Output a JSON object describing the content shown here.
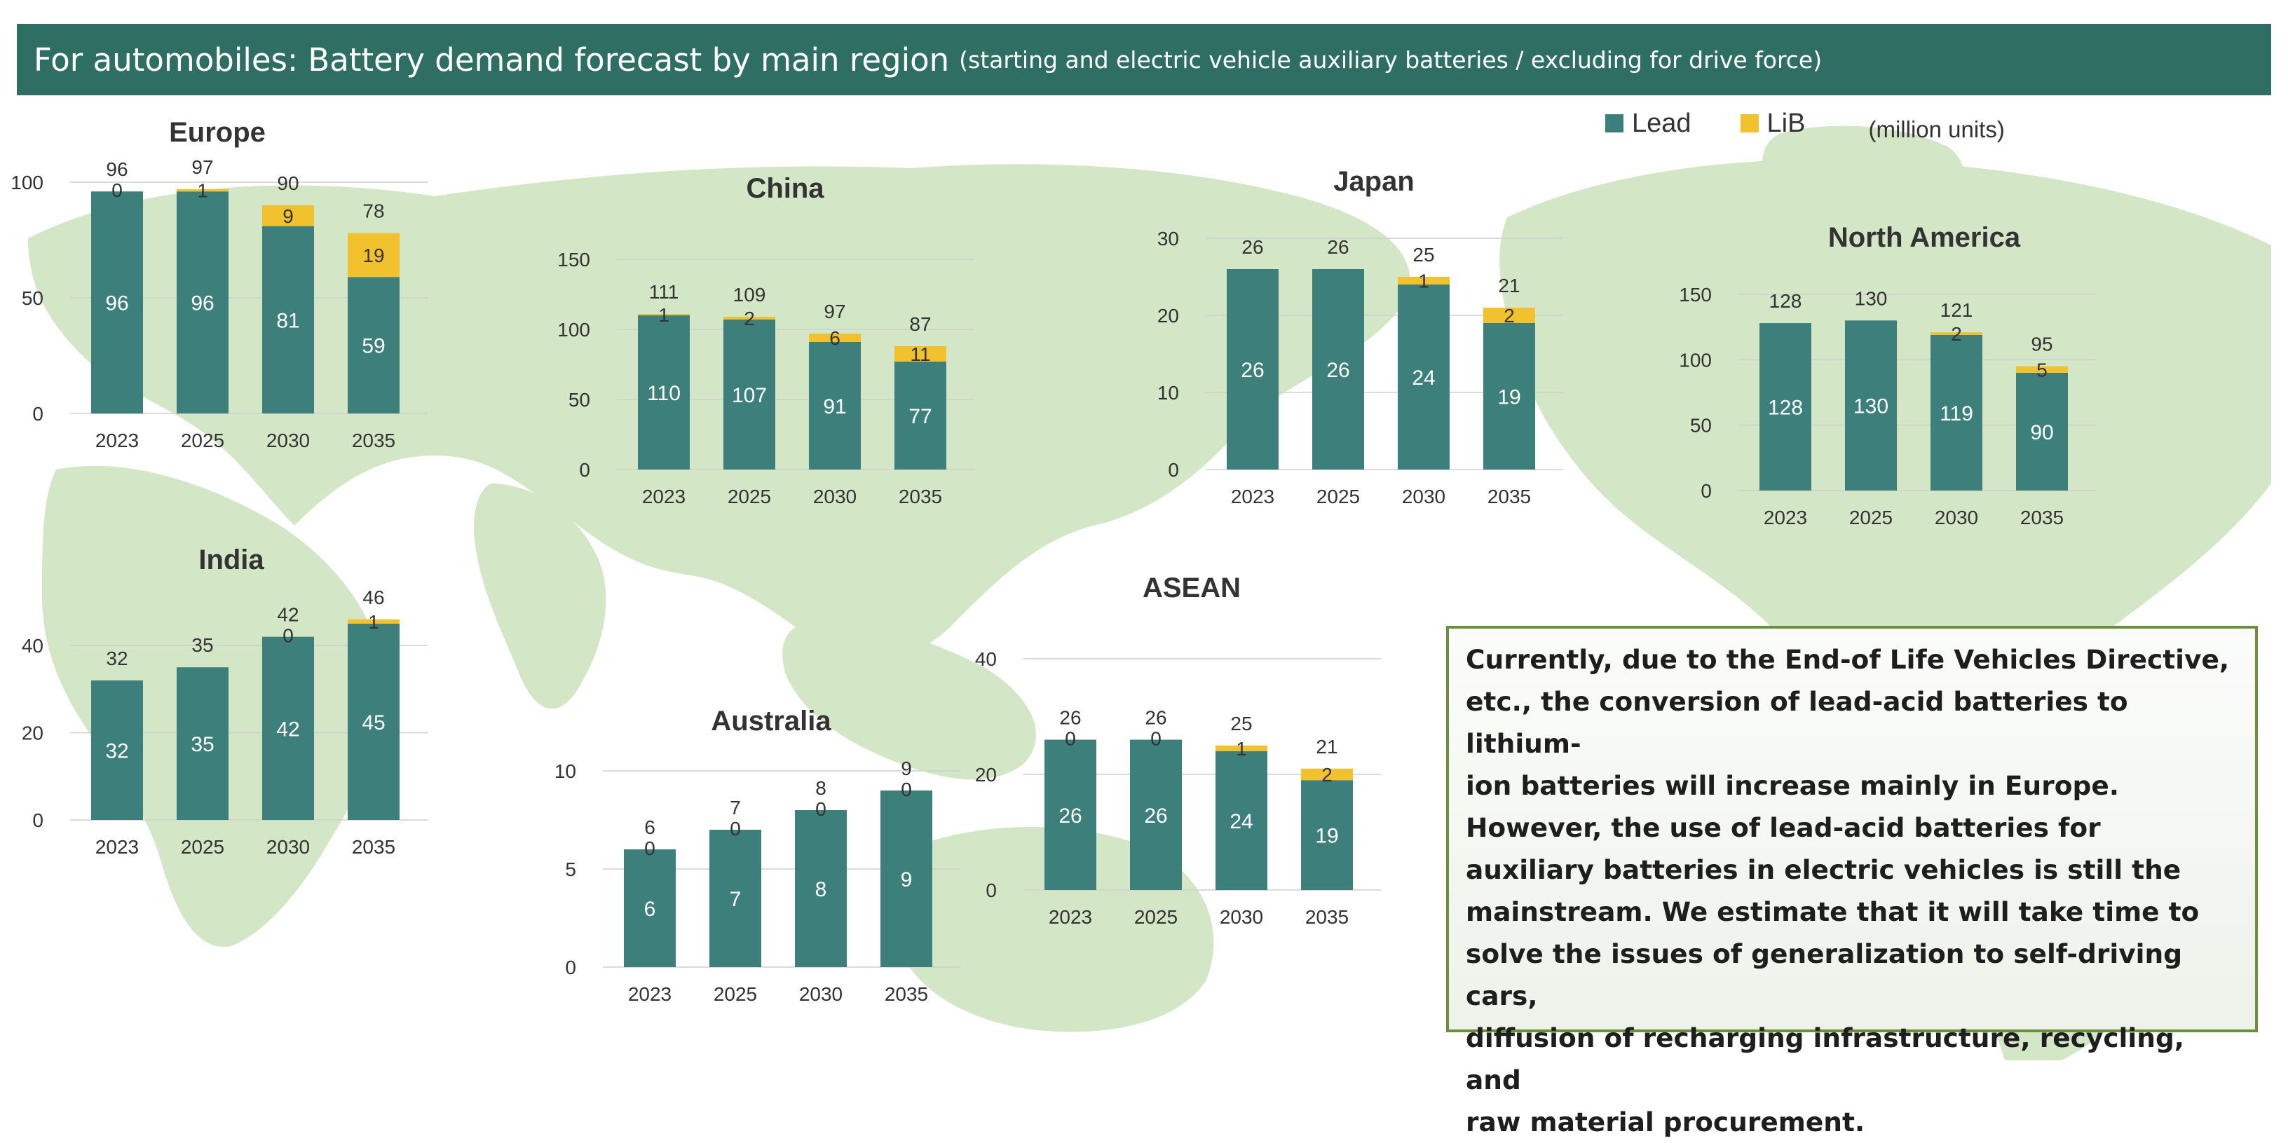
{
  "header": {
    "title": "For automobiles: Battery demand forecast by main region",
    "subtitle": "(starting and electric vehicle auxiliary batteries / excluding for drive force)"
  },
  "legend": {
    "lead_label": "Lead",
    "lib_label": "LiB",
    "unit": "(million units)"
  },
  "colors": {
    "lead": "#3d7f7a",
    "lib": "#f2c12e",
    "title_bar": "#2f6f63",
    "map": "#d3e6c6",
    "note_border": "#6c8f3c"
  },
  "chart_data": [
    {
      "type": "bar",
      "stacked": true,
      "title": "Europe",
      "categories": [
        "2023",
        "2025",
        "2030",
        "2035"
      ],
      "yticks": [
        0,
        50,
        100
      ],
      "ylim": [
        0,
        100
      ],
      "series": [
        {
          "name": "Lead",
          "values": [
            96,
            96,
            81,
            59
          ]
        },
        {
          "name": "LiB",
          "values": [
            0,
            1,
            9,
            19
          ]
        }
      ],
      "totals": [
        96,
        97,
        90,
        78
      ]
    },
    {
      "type": "bar",
      "stacked": true,
      "title": "China",
      "categories": [
        "2023",
        "2025",
        "2030",
        "2035"
      ],
      "yticks": [
        0,
        50,
        100,
        150
      ],
      "ylim": [
        0,
        150
      ],
      "series": [
        {
          "name": "Lead",
          "values": [
            110,
            107,
            91,
            77
          ]
        },
        {
          "name": "LiB",
          "values": [
            1,
            2,
            6,
            11
          ]
        }
      ],
      "totals": [
        111,
        109,
        97,
        87
      ]
    },
    {
      "type": "bar",
      "stacked": true,
      "title": "Japan",
      "categories": [
        "2023",
        "2025",
        "2030",
        "2035"
      ],
      "yticks": [
        0,
        10,
        20,
        30
      ],
      "ylim": [
        0,
        30
      ],
      "series": [
        {
          "name": "Lead",
          "values": [
            26,
            26,
            24,
            19
          ]
        },
        {
          "name": "LiB",
          "values": [
            0,
            0,
            1,
            2
          ]
        }
      ],
      "totals": [
        26,
        26,
        25,
        21
      ],
      "lib_labels": [
        "",
        "",
        "1",
        "2"
      ]
    },
    {
      "type": "bar",
      "stacked": true,
      "title": "North America",
      "categories": [
        "2023",
        "2025",
        "2030",
        "2035"
      ],
      "yticks": [
        0,
        50,
        100,
        150
      ],
      "ylim": [
        0,
        150
      ],
      "series": [
        {
          "name": "Lead",
          "values": [
            128,
            130,
            119,
            90
          ]
        },
        {
          "name": "LiB",
          "values": [
            0,
            0,
            2,
            5
          ]
        }
      ],
      "totals": [
        128,
        130,
        121,
        95
      ],
      "lib_labels": [
        "",
        "",
        "2",
        "5"
      ]
    },
    {
      "type": "bar",
      "stacked": true,
      "title": "India",
      "categories": [
        "2023",
        "2025",
        "2030",
        "2035"
      ],
      "yticks": [
        0,
        20,
        40
      ],
      "ylim": [
        0,
        45
      ],
      "series": [
        {
          "name": "Lead",
          "values": [
            32,
            35,
            42,
            45
          ]
        },
        {
          "name": "LiB",
          "values": [
            0,
            0,
            0,
            1
          ]
        }
      ],
      "totals": [
        32,
        35,
        42,
        46
      ],
      "lib_labels": [
        "",
        "",
        "0",
        "1"
      ]
    },
    {
      "type": "bar",
      "stacked": true,
      "title": "Australia",
      "categories": [
        "2023",
        "2025",
        "2030",
        "2035"
      ],
      "yticks": [
        0,
        5,
        10
      ],
      "ylim": [
        0,
        10
      ],
      "series": [
        {
          "name": "Lead",
          "values": [
            6,
            7,
            8,
            9
          ]
        },
        {
          "name": "LiB",
          "values": [
            0,
            0,
            0,
            0
          ]
        }
      ],
      "totals": [
        6,
        7,
        8,
        9
      ]
    },
    {
      "type": "bar",
      "stacked": true,
      "title": "ASEAN",
      "categories": [
        "2023",
        "2025",
        "2030",
        "2035"
      ],
      "yticks": [
        0,
        20,
        40
      ],
      "ylim": [
        0,
        40
      ],
      "series": [
        {
          "name": "Lead",
          "values": [
            26,
            26,
            24,
            19
          ]
        },
        {
          "name": "LiB",
          "values": [
            0,
            0,
            1,
            2
          ]
        }
      ],
      "totals": [
        26,
        26,
        25,
        21
      ]
    }
  ],
  "note": {
    "paragraph1": "   Currently, due to the End-of Life Vehicles Directive,\netc., the conversion of lead-acid batteries to lithium-\nion batteries will increase mainly in Europe.",
    "paragraph2": "        However, the use of lead-acid batteries for\nauxiliary batteries in electric vehicles is still the\nmainstream. We estimate that it will take time to\nsolve the issues of generalization to self-driving cars,\ndiffusion of recharging infrastructure, recycling, and\nraw material procurement."
  }
}
